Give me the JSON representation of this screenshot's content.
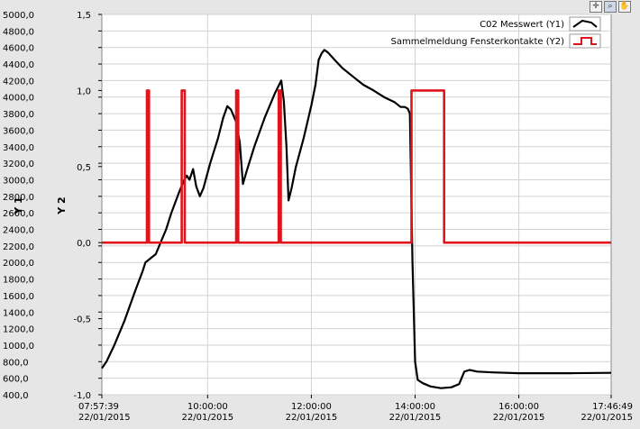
{
  "toolbar": {
    "cursor_icon": "crosshair-icon",
    "zoom_icon": "zoom-magnifier-icon",
    "pan_icon": "pan-hand-icon"
  },
  "chart_data": {
    "type": "line",
    "ylabel": "Y 1",
    "y2label": "Y 2",
    "ylim": [
      400,
      5000
    ],
    "y2lim": [
      -1.0,
      1.5
    ],
    "xlim_hours": [
      7.9608,
      17.7803
    ],
    "y_ticks": [
      "5000,0",
      "4800,0",
      "4600,0",
      "4400,0",
      "4200,0",
      "4000,0",
      "3800,0",
      "3600,0",
      "3400,0",
      "3200,0",
      "3000,0",
      "2800,0",
      "2600,0",
      "2400,0",
      "2200,0",
      "2000,0",
      "1800,0",
      "1600,0",
      "1400,0",
      "1200,0",
      "1000,0",
      "800,0",
      "600,0",
      "400,0"
    ],
    "y2_ticks": [
      "1,5",
      "1,0",
      "0,5",
      "0,0",
      "-0,5",
      "-1,0"
    ],
    "x_ticks": [
      {
        "time": "07:57:39",
        "date": "22/01/2015"
      },
      {
        "time": "10:00:00",
        "date": "22/01/2015"
      },
      {
        "time": "12:00:00",
        "date": "22/01/2015"
      },
      {
        "time": "14:00:00",
        "date": "22/01/2015"
      },
      {
        "time": "16:00:00",
        "date": "22/01/2015"
      },
      {
        "time": "17:46:49",
        "date": "22/01/2015"
      }
    ],
    "grid": true,
    "legend_position": "top-right",
    "series": [
      {
        "name": "C02 Messwert (Y1)",
        "axis": "y1",
        "color": "#000000",
        "points": [
          [
            7.96,
            720
          ],
          [
            8.05,
            800
          ],
          [
            8.2,
            1000
          ],
          [
            8.4,
            1300
          ],
          [
            8.6,
            1650
          ],
          [
            8.75,
            1900
          ],
          [
            8.8,
            2000
          ],
          [
            8.9,
            2050
          ],
          [
            9.0,
            2100
          ],
          [
            9.1,
            2250
          ],
          [
            9.2,
            2400
          ],
          [
            9.3,
            2600
          ],
          [
            9.45,
            2850
          ],
          [
            9.55,
            3000
          ],
          [
            9.6,
            3050
          ],
          [
            9.65,
            3000
          ],
          [
            9.72,
            3130
          ],
          [
            9.78,
            2920
          ],
          [
            9.85,
            2800
          ],
          [
            9.92,
            2900
          ],
          [
            10.05,
            3200
          ],
          [
            10.2,
            3500
          ],
          [
            10.3,
            3750
          ],
          [
            10.38,
            3890
          ],
          [
            10.45,
            3850
          ],
          [
            10.55,
            3700
          ],
          [
            10.62,
            3450
          ],
          [
            10.68,
            2950
          ],
          [
            10.75,
            3100
          ],
          [
            10.9,
            3400
          ],
          [
            11.1,
            3750
          ],
          [
            11.3,
            4050
          ],
          [
            11.42,
            4200
          ],
          [
            11.47,
            3950
          ],
          [
            11.52,
            3400
          ],
          [
            11.56,
            2750
          ],
          [
            11.62,
            2900
          ],
          [
            11.7,
            3150
          ],
          [
            11.85,
            3500
          ],
          [
            12.0,
            3900
          ],
          [
            12.08,
            4150
          ],
          [
            12.14,
            4450
          ],
          [
            12.2,
            4530
          ],
          [
            12.25,
            4570
          ],
          [
            12.32,
            4540
          ],
          [
            12.45,
            4450
          ],
          [
            12.6,
            4350
          ],
          [
            12.8,
            4250
          ],
          [
            13.0,
            4150
          ],
          [
            13.2,
            4080
          ],
          [
            13.4,
            4000
          ],
          [
            13.6,
            3940
          ],
          [
            13.72,
            3880
          ],
          [
            13.8,
            3880
          ],
          [
            13.86,
            3860
          ],
          [
            13.9,
            3800
          ],
          [
            13.95,
            2000
          ],
          [
            14.0,
            800
          ],
          [
            14.05,
            580
          ],
          [
            14.15,
            540
          ],
          [
            14.3,
            500
          ],
          [
            14.5,
            480
          ],
          [
            14.7,
            490
          ],
          [
            14.85,
            530
          ],
          [
            14.95,
            680
          ],
          [
            15.05,
            700
          ],
          [
            15.2,
            680
          ],
          [
            15.5,
            670
          ],
          [
            16.0,
            660
          ],
          [
            17.0,
            660
          ],
          [
            17.78,
            665
          ]
        ]
      },
      {
        "name": "Sammelmeldung Fensterkontakte (Y2)",
        "axis": "y2",
        "color": "#e0141c",
        "points": [
          [
            7.96,
            0
          ],
          [
            8.83,
            0
          ],
          [
            8.83,
            1
          ],
          [
            8.87,
            1
          ],
          [
            8.87,
            0
          ],
          [
            9.5,
            0
          ],
          [
            9.5,
            1
          ],
          [
            9.56,
            1
          ],
          [
            9.56,
            0
          ],
          [
            10.55,
            0
          ],
          [
            10.55,
            1
          ],
          [
            10.59,
            1
          ],
          [
            10.59,
            0
          ],
          [
            11.37,
            0
          ],
          [
            11.37,
            1
          ],
          [
            11.41,
            1
          ],
          [
            11.41,
            0
          ],
          [
            13.93,
            0
          ],
          [
            13.93,
            1
          ],
          [
            14.56,
            1
          ],
          [
            14.56,
            0
          ],
          [
            17.78,
            0
          ]
        ]
      }
    ]
  }
}
